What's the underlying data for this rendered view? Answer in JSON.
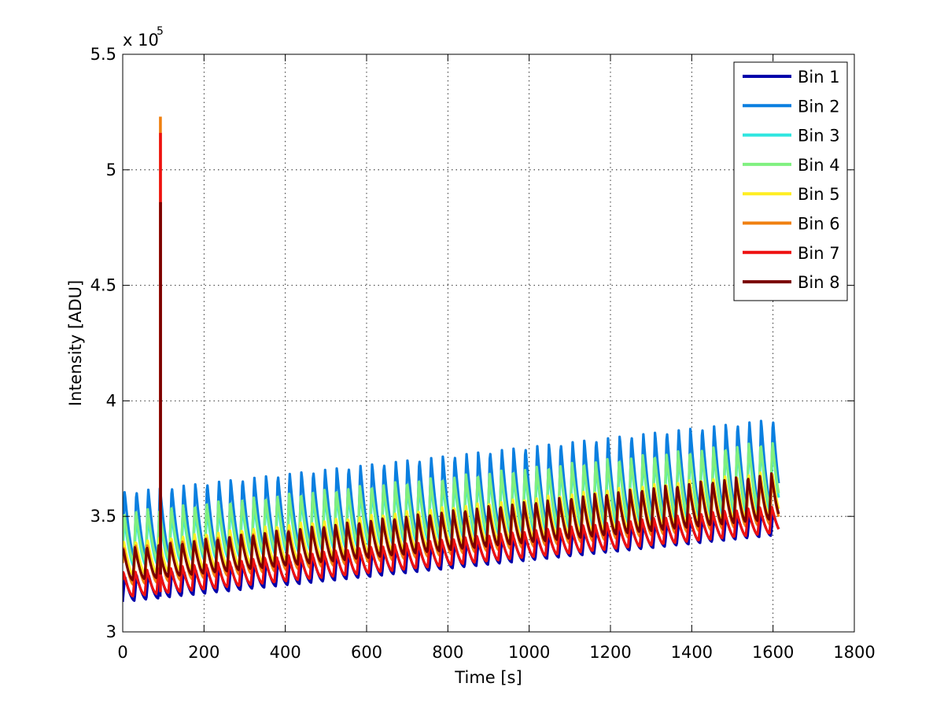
{
  "chart_data": {
    "type": "line",
    "title": "",
    "xlabel": "Time [s]",
    "ylabel": "Intensity [ADU]",
    "xlim": [
      0,
      1800
    ],
    "ylim": [
      300000,
      550000
    ],
    "x_ticks": [
      0,
      200,
      400,
      600,
      800,
      1000,
      1200,
      1400,
      1600,
      1800
    ],
    "x_tick_labels": [
      "0",
      "200",
      "400",
      "600",
      "800",
      "1000",
      "1200",
      "1400",
      "1600",
      "1800"
    ],
    "y_ticks": [
      300000,
      350000,
      400000,
      450000,
      500000,
      550000
    ],
    "y_tick_labels": [
      "3",
      "3.5",
      "4",
      "4.5",
      "5",
      "5.5"
    ],
    "y_multiplier_base": "x 10",
    "y_multiplier_exp": "5",
    "grid": true,
    "legend_position": "top-right",
    "x_end": 1615,
    "period_s": 29,
    "spike_time_s": 92,
    "series": [
      {
        "name": "Bin 1",
        "color": "#0000AA",
        "low_start": 313000,
        "low_end": 342000,
        "high_start": 324000,
        "high_end": 352000,
        "spike_peak": 350000
      },
      {
        "name": "Bin 2",
        "color": "#0A7FE0",
        "low_start": 332000,
        "low_end": 356000,
        "high_start": 361000,
        "high_end": 393000,
        "spike_peak": 362000
      },
      {
        "name": "Bin 3",
        "color": "#2FE6E0",
        "low_start": 328000,
        "low_end": 352000,
        "high_start": 349000,
        "high_end": 382000,
        "spike_peak": 352000
      },
      {
        "name": "Bin 4",
        "color": "#80F080",
        "low_start": 330000,
        "low_end": 355000,
        "high_start": 352000,
        "high_end": 383000,
        "spike_peak": 355000
      },
      {
        "name": "Bin 5",
        "color": "#FFEE22",
        "low_start": 324000,
        "low_end": 350000,
        "high_start": 339000,
        "high_end": 370000,
        "spike_peak": 345000
      },
      {
        "name": "Bin 6",
        "color": "#F08010",
        "low_start": 320000,
        "low_end": 347000,
        "high_start": 337000,
        "high_end": 367000,
        "spike_peak": 523000
      },
      {
        "name": "Bin 7",
        "color": "#EE1111",
        "low_start": 315000,
        "low_end": 343000,
        "high_start": 326000,
        "high_end": 355000,
        "spike_peak": 516000
      },
      {
        "name": "Bin 8",
        "color": "#7A0000",
        "low_start": 322000,
        "low_end": 349000,
        "high_start": 336000,
        "high_end": 369000,
        "spike_peak": 486000
      }
    ]
  }
}
